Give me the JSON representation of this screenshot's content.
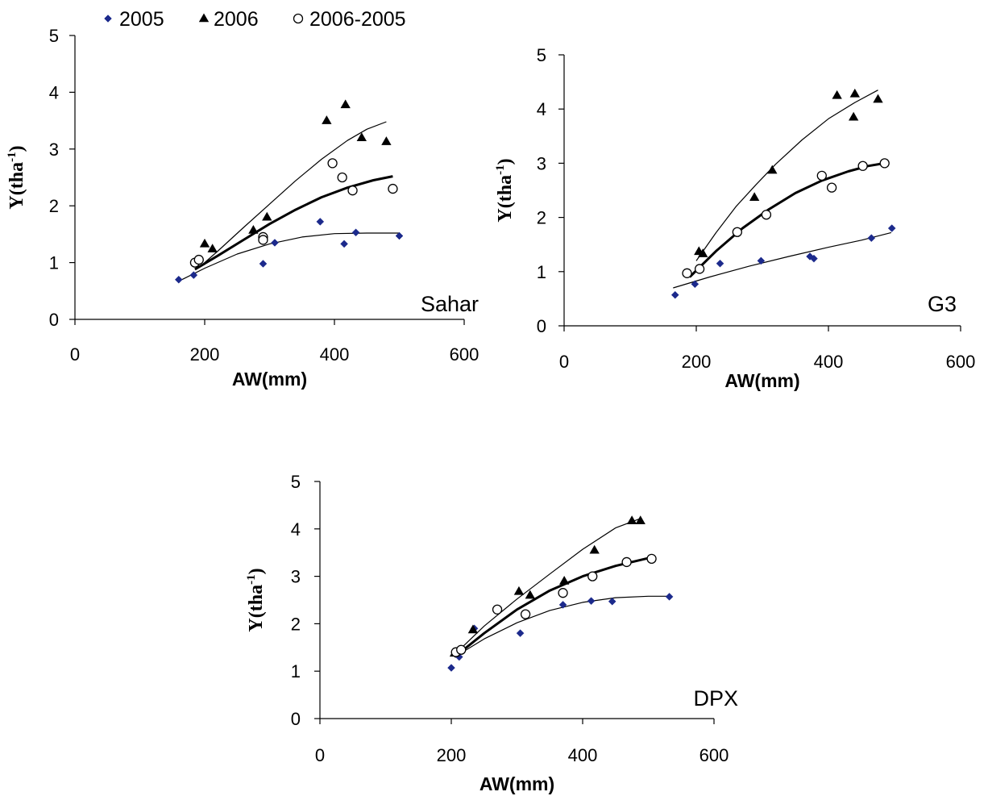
{
  "legend": {
    "entries": [
      {
        "label": "2005",
        "marker": "diamond",
        "color": "#1c2a8c"
      },
      {
        "label": "2006",
        "marker": "triangle",
        "color": "#000000"
      },
      {
        "label": "2006-2005",
        "marker": "circle-open",
        "color": "#000000"
      }
    ]
  },
  "chart_data": [
    {
      "type": "scatter",
      "title": "Sahar",
      "xlabel": "AW(mm)",
      "ylabel": "Y(tha-1)",
      "ylabel_main": "Y(tha",
      "ylabel_sup": "-1",
      "ylabel_close": ")",
      "xlim": [
        0,
        600
      ],
      "ylim": [
        0,
        5
      ],
      "xticks": [
        "0",
        "200",
        "400",
        "600"
      ],
      "yticks": [
        "0",
        "1",
        "2",
        "3",
        "4",
        "5"
      ],
      "grid": false,
      "series": [
        {
          "name": "2005",
          "marker": "diamond",
          "color": "#1c2a8c",
          "points": [
            [
              160,
              0.7
            ],
            [
              183,
              0.78
            ],
            [
              290,
              0.98
            ],
            [
              308,
              1.35
            ],
            [
              378,
              1.72
            ],
            [
              415,
              1.33
            ],
            [
              433,
              1.53
            ],
            [
              500,
              1.47
            ]
          ],
          "fit": [
            [
              165,
              0.7
            ],
            [
              200,
              0.9
            ],
            [
              250,
              1.15
            ],
            [
              300,
              1.33
            ],
            [
              350,
              1.45
            ],
            [
              400,
              1.51
            ],
            [
              450,
              1.52
            ],
            [
              500,
              1.52
            ]
          ],
          "fit_width": 1.2
        },
        {
          "name": "2006",
          "marker": "triangle",
          "color": "#000000",
          "points": [
            [
              200,
              1.33
            ],
            [
              212,
              1.24
            ],
            [
              275,
              1.57
            ],
            [
              296,
              1.8
            ],
            [
              388,
              3.5
            ],
            [
              417,
              3.78
            ],
            [
              442,
              3.2
            ],
            [
              480,
              3.13
            ]
          ],
          "fit": [
            [
              190,
              0.9
            ],
            [
              220,
              1.2
            ],
            [
              260,
              1.62
            ],
            [
              300,
              2.03
            ],
            [
              340,
              2.44
            ],
            [
              380,
              2.82
            ],
            [
              420,
              3.15
            ],
            [
              450,
              3.35
            ],
            [
              480,
              3.48
            ]
          ],
          "fit_width": 1.2
        },
        {
          "name": "2006-2005",
          "marker": "circle-open",
          "color": "#000000",
          "points": [
            [
              185,
              1.0
            ],
            [
              191,
              1.05
            ],
            [
              290,
              1.45
            ],
            [
              290,
              1.4
            ],
            [
              397,
              2.75
            ],
            [
              412,
              2.5
            ],
            [
              428,
              2.27
            ],
            [
              490,
              2.3
            ]
          ],
          "fit": [
            [
              185,
              0.88
            ],
            [
              220,
              1.12
            ],
            [
              260,
              1.4
            ],
            [
              300,
              1.68
            ],
            [
              340,
              1.93
            ],
            [
              380,
              2.15
            ],
            [
              420,
              2.32
            ],
            [
              460,
              2.45
            ],
            [
              490,
              2.52
            ]
          ],
          "fit_width": 3
        }
      ]
    },
    {
      "type": "scatter",
      "title": "G3",
      "xlabel": "AW(mm)",
      "ylabel": "Y(tha-1)",
      "ylabel_main": "Y(tha",
      "ylabel_sup": "-1",
      "ylabel_close": ")",
      "xlim": [
        0,
        600
      ],
      "ylim": [
        0,
        5
      ],
      "xticks": [
        "0",
        "200",
        "400",
        "600"
      ],
      "yticks": [
        "0",
        "1",
        "2",
        "3",
        "4",
        "5"
      ],
      "grid": false,
      "series": [
        {
          "name": "2005",
          "marker": "diamond",
          "color": "#1c2a8c",
          "points": [
            [
              168,
              0.57
            ],
            [
              198,
              0.77
            ],
            [
              236,
              1.15
            ],
            [
              298,
              1.2
            ],
            [
              372,
              1.28
            ],
            [
              378,
              1.24
            ],
            [
              465,
              1.62
            ],
            [
              496,
              1.8
            ]
          ],
          "fit": [
            [
              165,
              0.7
            ],
            [
              220,
              0.9
            ],
            [
              280,
              1.1
            ],
            [
              340,
              1.28
            ],
            [
              400,
              1.45
            ],
            [
              450,
              1.58
            ],
            [
              495,
              1.72
            ]
          ],
          "fit_width": 1.2
        },
        {
          "name": "2006",
          "marker": "triangle",
          "color": "#000000",
          "points": [
            [
              204,
              1.37
            ],
            [
              210,
              1.33
            ],
            [
              288,
              2.37
            ],
            [
              315,
              2.87
            ],
            [
              413,
              4.25
            ],
            [
              438,
              3.85
            ],
            [
              440,
              4.28
            ],
            [
              475,
              4.18
            ]
          ],
          "fit": [
            [
              200,
              1.2
            ],
            [
              230,
              1.72
            ],
            [
              260,
              2.2
            ],
            [
              290,
              2.6
            ],
            [
              320,
              2.98
            ],
            [
              360,
              3.43
            ],
            [
              400,
              3.82
            ],
            [
              440,
              4.12
            ],
            [
              475,
              4.35
            ]
          ],
          "fit_width": 1.2
        },
        {
          "name": "2006-2005",
          "marker": "circle-open",
          "color": "#000000",
          "points": [
            [
              186,
              0.97
            ],
            [
              205,
              1.05
            ],
            [
              262,
              1.73
            ],
            [
              306,
              2.05
            ],
            [
              390,
              2.77
            ],
            [
              405,
              2.55
            ],
            [
              452,
              2.95
            ],
            [
              485,
              3.0
            ]
          ],
          "fit": [
            [
              190,
              0.9
            ],
            [
              230,
              1.38
            ],
            [
              270,
              1.8
            ],
            [
              310,
              2.15
            ],
            [
              350,
              2.45
            ],
            [
              390,
              2.68
            ],
            [
              430,
              2.85
            ],
            [
              460,
              2.95
            ],
            [
              485,
              3.0
            ]
          ],
          "fit_width": 3
        }
      ]
    },
    {
      "type": "scatter",
      "title": "DPX",
      "xlabel": "AW(mm)",
      "ylabel": "Y(tha-1)",
      "ylabel_main": "Y(tha",
      "ylabel_sup": "-1",
      "ylabel_close": ")",
      "xlim": [
        0,
        600
      ],
      "ylim": [
        0,
        5
      ],
      "xticks": [
        "0",
        "200",
        "400",
        "600"
      ],
      "yticks": [
        "0",
        "1",
        "2",
        "3",
        "4",
        "5"
      ],
      "grid": false,
      "series": [
        {
          "name": "2005",
          "marker": "diamond",
          "color": "#1c2a8c",
          "points": [
            [
              200,
              1.07
            ],
            [
              212,
              1.3
            ],
            [
              235,
              1.9
            ],
            [
              305,
              1.8
            ],
            [
              370,
              2.4
            ],
            [
              413,
              2.48
            ],
            [
              445,
              2.47
            ],
            [
              532,
              2.57
            ]
          ],
          "fit": [
            [
              205,
              1.3
            ],
            [
              250,
              1.68
            ],
            [
              300,
              2.02
            ],
            [
              350,
              2.28
            ],
            [
              400,
              2.45
            ],
            [
              450,
              2.55
            ],
            [
              500,
              2.58
            ],
            [
              530,
              2.58
            ]
          ],
          "fit_width": 1.2
        },
        {
          "name": "2006",
          "marker": "triangle",
          "color": "#000000",
          "points": [
            [
              205,
              1.38
            ],
            [
              233,
              1.87
            ],
            [
              303,
              2.68
            ],
            [
              320,
              2.6
            ],
            [
              372,
              2.9
            ],
            [
              418,
              3.55
            ],
            [
              475,
              4.17
            ],
            [
              488,
              4.17
            ]
          ],
          "fit": [
            [
              205,
              1.35
            ],
            [
              250,
              1.95
            ],
            [
              300,
              2.52
            ],
            [
              350,
              3.05
            ],
            [
              400,
              3.57
            ],
            [
              450,
              4.02
            ],
            [
              488,
              4.22
            ]
          ],
          "fit_width": 1.2
        },
        {
          "name": "2006-2005",
          "marker": "circle-open",
          "color": "#000000",
          "points": [
            [
              207,
              1.4
            ],
            [
              215,
              1.45
            ],
            [
              270,
              2.3
            ],
            [
              313,
              2.2
            ],
            [
              370,
              2.65
            ],
            [
              415,
              3.0
            ],
            [
              467,
              3.3
            ],
            [
              505,
              3.37
            ]
          ],
          "fit": [
            [
              205,
              1.3
            ],
            [
              250,
              1.8
            ],
            [
              300,
              2.3
            ],
            [
              350,
              2.7
            ],
            [
              400,
              3.0
            ],
            [
              450,
              3.22
            ],
            [
              505,
              3.4
            ]
          ],
          "fit_width": 3
        }
      ]
    }
  ]
}
